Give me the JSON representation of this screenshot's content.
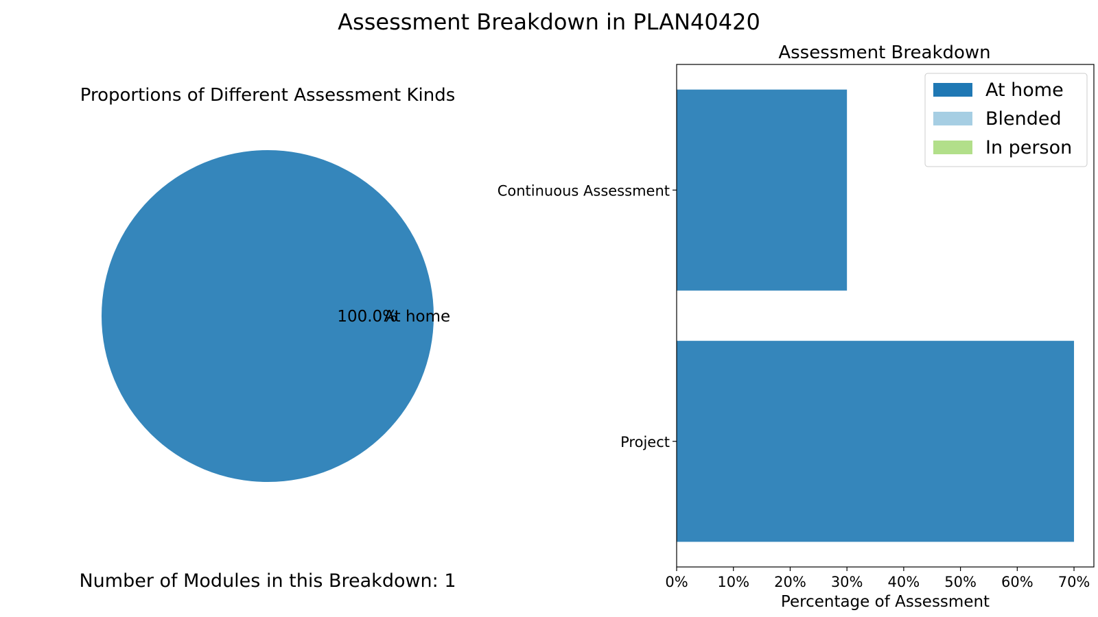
{
  "figure": {
    "title": "Assessment Breakdown in PLAN40420"
  },
  "colors": {
    "at_home": "#3586bb",
    "blended": "#a6cee3",
    "in_person": "#b2df8a",
    "legend_at_home": "#1f78b4"
  },
  "chart_data": [
    {
      "type": "pie",
      "title": "Proportions of Different Assessment Kinds",
      "slices": [
        {
          "label": "At home",
          "value": 100,
          "pct_label": "100.0%",
          "color": "#3586bb"
        }
      ],
      "footer": "Number of Modules in this Breakdown: 1"
    },
    {
      "type": "bar",
      "orientation": "horizontal",
      "stacked": true,
      "title": "Assessment Breakdown",
      "xlabel": "Percentage of Assessment",
      "ylabel": "",
      "categories": [
        "Continuous Assessment",
        "Project"
      ],
      "series": [
        {
          "name": "At home",
          "values": [
            30,
            70
          ],
          "color": "#3586bb",
          "legend_color": "#1f78b4"
        },
        {
          "name": "Blended",
          "values": [
            0,
            0
          ],
          "color": "#a6cee3",
          "legend_color": "#a6cee3"
        },
        {
          "name": "In person",
          "values": [
            0,
            0
          ],
          "color": "#b2df8a",
          "legend_color": "#b2df8a"
        }
      ],
      "xlim": [
        0,
        73.5
      ],
      "xticks": [
        0,
        10,
        20,
        30,
        40,
        50,
        60,
        70
      ],
      "xtick_labels": [
        "0%",
        "10%",
        "20%",
        "30%",
        "40%",
        "50%",
        "60%",
        "70%"
      ],
      "grid": false,
      "legend_position": "top-right"
    }
  ]
}
